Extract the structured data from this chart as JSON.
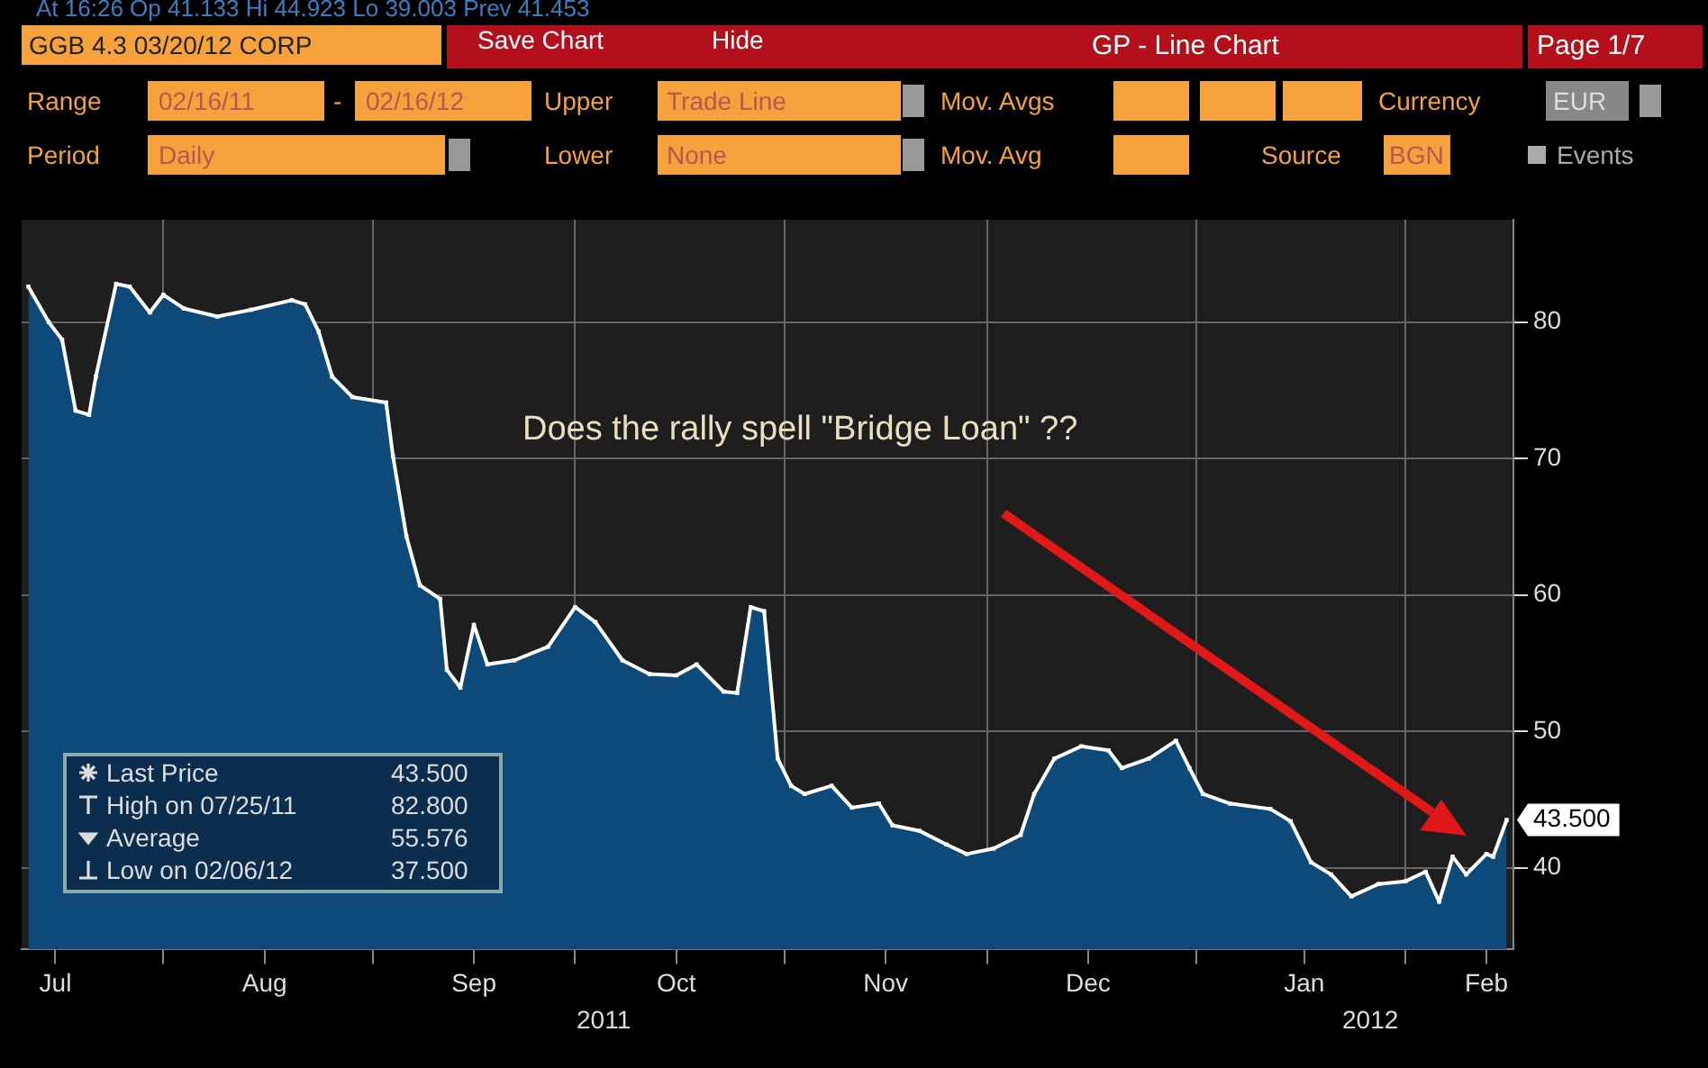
{
  "chart_data": {
    "type": "area",
    "title": "GP - Line Chart",
    "x": [
      "2011-07-12",
      "2011-07-15",
      "2011-07-17",
      "2011-07-19",
      "2011-07-21",
      "2011-07-22",
      "2011-07-25",
      "2011-07-27",
      "2011-07-30",
      "2011-08-01",
      "2011-08-04",
      "2011-08-09",
      "2011-08-14",
      "2011-08-20",
      "2011-08-22",
      "2011-08-24",
      "2011-08-26",
      "2011-08-29",
      "2011-09-03",
      "2011-09-04",
      "2011-09-06",
      "2011-09-08",
      "2011-09-11",
      "2011-09-12",
      "2011-09-14",
      "2011-09-16",
      "2011-09-18",
      "2011-09-22",
      "2011-09-27",
      "2011-10-01",
      "2011-10-04",
      "2011-10-08",
      "2011-10-12",
      "2011-10-16",
      "2011-10-19",
      "2011-10-23",
      "2011-10-25",
      "2011-10-27",
      "2011-10-29",
      "2011-10-31",
      "2011-11-02",
      "2011-11-04",
      "2011-11-08",
      "2011-11-11",
      "2011-11-15",
      "2011-11-17",
      "2011-11-21",
      "2011-11-25",
      "2011-11-28",
      "2011-12-02",
      "2011-12-06",
      "2011-12-08",
      "2011-12-11",
      "2011-12-15",
      "2011-12-19",
      "2011-12-21",
      "2011-12-25",
      "2011-12-29",
      "2011-12-31",
      "2012-01-02",
      "2012-01-06",
      "2012-01-12",
      "2012-01-15",
      "2012-01-18",
      "2012-01-21",
      "2012-01-24",
      "2012-01-28",
      "2012-02-01",
      "2012-02-04",
      "2012-02-06",
      "2012-02-08",
      "2012-02-10",
      "2012-02-13",
      "2012-02-14",
      "2012-02-16"
    ],
    "series": [
      {
        "color": "#0d4a7a",
        "values": [
          82.6,
          80,
          78.7,
          73.5,
          73.2,
          76,
          82.8,
          82.6,
          80.7,
          82,
          81,
          80.4,
          80.9,
          81.6,
          81.3,
          79.3,
          76,
          74.5,
          74.1,
          70.2,
          64.3,
          60.7,
          59.7,
          54.5,
          53.2,
          57.8,
          54.9,
          55.2,
          56.2,
          59.1,
          58,
          55.2,
          54.2,
          54.1,
          54.9,
          52.9,
          52.8,
          59.1,
          58.8,
          48,
          46,
          45.4,
          46,
          44.4,
          44.7,
          43.1,
          42.7,
          41.7,
          41,
          41.4,
          42.4,
          45.4,
          48,
          48.9,
          48.6,
          47.3,
          48,
          49.3,
          47.3,
          45.4,
          44.7,
          44.3,
          43.4,
          40.4,
          39.5,
          37.9,
          38.8,
          39,
          39.7,
          37.5,
          40.8,
          39.5,
          41,
          40.8,
          43.5
        ]
      }
    ],
    "xlim": [
      "2011-07-11",
      "2012-02-17"
    ],
    "xticks": [
      {
        "value": "2011-07-16",
        "label": "Jul"
      },
      {
        "value": "2011-08-01",
        "label": null
      },
      {
        "value": "2011-08-16",
        "label": "Aug"
      },
      {
        "value": "2011-09-01",
        "label": null
      },
      {
        "value": "2011-09-16",
        "label": "Sep"
      },
      {
        "value": "2011-10-01",
        "label": null
      },
      {
        "value": "2011-10-16",
        "label": "Oct"
      },
      {
        "value": "2011-11-01",
        "label": null
      },
      {
        "value": "2011-11-16",
        "label": "Nov"
      },
      {
        "value": "2011-12-01",
        "label": null
      },
      {
        "value": "2011-12-16",
        "label": "Dec"
      },
      {
        "value": "2012-01-01",
        "label": null
      },
      {
        "value": "2012-01-17",
        "label": "Jan"
      },
      {
        "value": "2012-02-01",
        "label": null
      },
      {
        "value": "2012-02-13",
        "label": "Feb"
      }
    ],
    "ylim": [
      34,
      87.5
    ],
    "yticks": [
      40,
      50,
      60,
      70,
      80
    ],
    "grid": true,
    "marker": "square",
    "legend": false,
    "annotations": [
      "At 16:26 Op 41.133 Hi 44.923 Lo 39.003 Prev 41.453",
      "GGB 4.3 03/20/12 CORP",
      "Save Chart",
      "Hide",
      "Page 1/7",
      "Range",
      "02/16/11",
      "-",
      "02/16/12",
      "Upper",
      "Trade Line",
      "Mov. Avgs",
      "Currency",
      "EUR",
      "Period",
      "Daily",
      "Lower",
      "None",
      "Mov. Avg",
      "Source",
      "BGN",
      "Events",
      "Does the rally spell \"Bridge Loan\" ??",
      "Last Price",
      "43.500",
      "High on 07/25/11",
      "82.800",
      "Average",
      "55.576",
      "Low on 02/06/12",
      "37.500",
      {
        "text": "43.500",
        "x": "2012-02-16",
        "y": 43.5
      },
      "2011",
      "2012"
    ]
  }
}
